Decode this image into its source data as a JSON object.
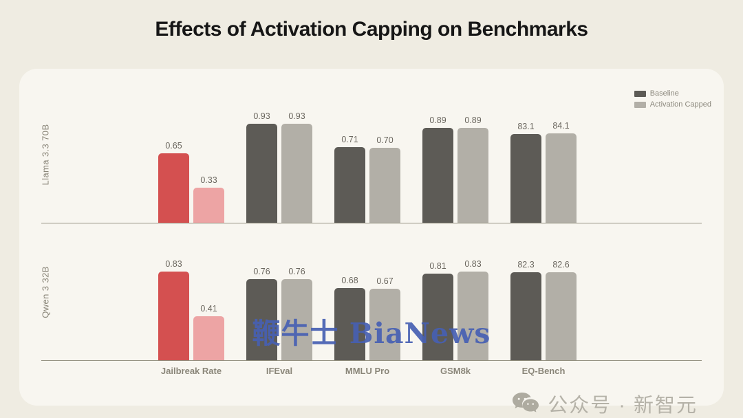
{
  "title": "Effects of Activation Capping on Benchmarks",
  "watermarks": {
    "center": "鞭牛士 BiaNews",
    "bottom_right": "公众号 · 新智元"
  },
  "colors": {
    "background": "#efece2",
    "card": "#f8f6f0",
    "baseline_bar": "#5d5b56",
    "capped_bar": "#b2afa7",
    "jailbreak_baseline_bar": "#d45050",
    "jailbreak_capped_bar": "#eda4a4",
    "axis_line": "#93907f",
    "value_label": "#6b675f",
    "category_label": "#8a8679",
    "watermark_blue": "#4760b3",
    "watermark_gray": "#b5b2a8"
  },
  "chart_data": {
    "type": "bar",
    "title": "Effects of Activation Capping on Benchmarks",
    "categories": [
      "Jailbreak Rate",
      "IFEval",
      "MMLU Pro",
      "GSM8k",
      "EQ-Bench"
    ],
    "legend_entries": [
      "Baseline",
      "Activation Capped"
    ],
    "legend_position": "top-right",
    "grid": false,
    "ylim": [
      0,
      1
    ],
    "value_scale_note": "EQ-Bench scores are out of 100; bar heights normalized onto the 0-1 axis",
    "highlight_note": "Jailbreak Rate bars drawn in red (Baseline) and pink (Activation Capped); all other bars dark/light gray",
    "panels": [
      {
        "row_label": "Llama 3.3 70B",
        "series": [
          {
            "name": "Baseline",
            "values": [
              0.65,
              0.93,
              0.71,
              0.89,
              83.1
            ]
          },
          {
            "name": "Activation Capped",
            "values": [
              0.33,
              0.93,
              0.7,
              0.89,
              84.1
            ]
          }
        ]
      },
      {
        "row_label": "Qwen 3 32B",
        "series": [
          {
            "name": "Baseline",
            "values": [
              0.83,
              0.76,
              0.68,
              0.81,
              82.3
            ]
          },
          {
            "name": "Activation Capped",
            "values": [
              0.41,
              0.76,
              0.67,
              0.83,
              82.6
            ]
          }
        ]
      }
    ]
  }
}
